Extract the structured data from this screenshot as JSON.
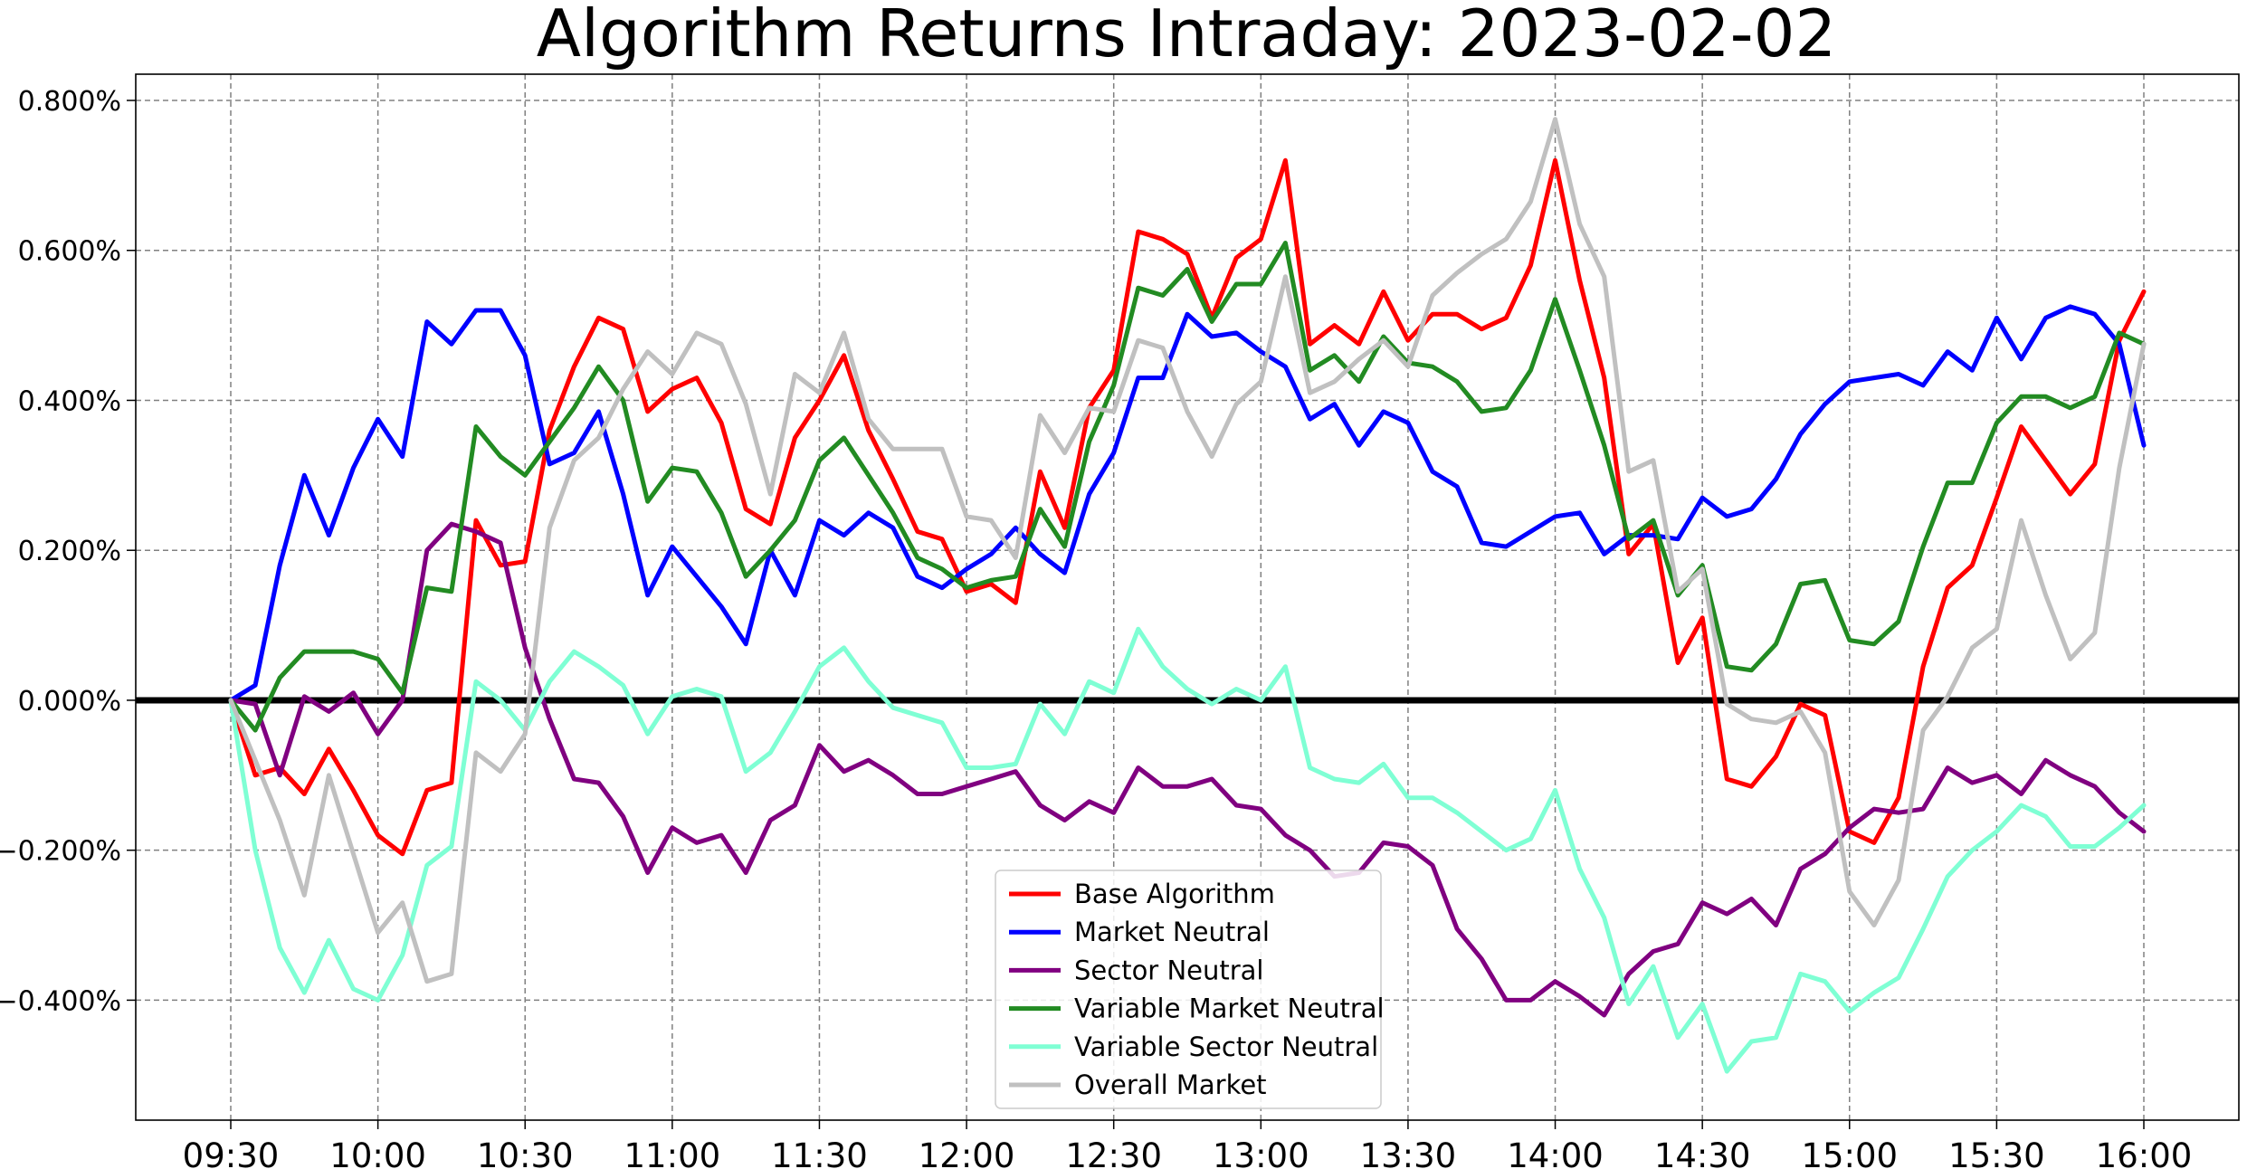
{
  "chart_data": {
    "type": "line",
    "title": "Algorithm Returns Intraday: 2023-02-02",
    "xlabel": "",
    "ylabel": "",
    "x_start": "09:30",
    "x_end": "16:00",
    "x_step_minutes": 5,
    "x_ticks": [
      "09:30",
      "10:00",
      "10:30",
      "11:00",
      "11:30",
      "12:00",
      "12:30",
      "13:00",
      "13:30",
      "14:00",
      "14:30",
      "15:00",
      "15:30",
      "16:00"
    ],
    "y_ticks": [
      "-0.400%",
      "-0.200%",
      "0.000%",
      "0.200%",
      "0.400%",
      "0.600%",
      "0.800%"
    ],
    "y_tick_values": [
      -0.4,
      -0.2,
      0.0,
      0.2,
      0.4,
      0.6,
      0.8
    ],
    "ylim": [
      -0.56,
      0.835
    ],
    "y_unit": "%",
    "grid": true,
    "zero_line": true,
    "legend_position": "bottom-center",
    "series": [
      {
        "name": "Base Algorithm",
        "color": "#ff0000",
        "values": [
          0.0,
          -0.1,
          -0.09,
          -0.125,
          -0.065,
          -0.12,
          -0.18,
          -0.205,
          -0.12,
          -0.11,
          0.24,
          0.18,
          0.185,
          0.36,
          0.445,
          0.51,
          0.495,
          0.385,
          0.415,
          0.43,
          0.37,
          0.255,
          0.235,
          0.35,
          0.4,
          0.46,
          0.36,
          0.295,
          0.225,
          0.215,
          0.145,
          0.155,
          0.13,
          0.305,
          0.23,
          0.39,
          0.44,
          0.625,
          0.615,
          0.595,
          0.51,
          0.59,
          0.615,
          0.72,
          0.475,
          0.5,
          0.475,
          0.545,
          0.48,
          0.515,
          0.515,
          0.495,
          0.51,
          0.58,
          0.72,
          0.56,
          0.43,
          0.195,
          0.235,
          0.05,
          0.11,
          -0.105,
          -0.115,
          -0.075,
          -0.005,
          -0.02,
          -0.175,
          -0.19,
          -0.13,
          0.045,
          0.15,
          0.18,
          0.27,
          0.365,
          0.32,
          0.275,
          0.315,
          0.48,
          0.545
        ]
      },
      {
        "name": "Market Neutral",
        "color": "#0000ff",
        "values": [
          0.0,
          0.02,
          0.18,
          0.3,
          0.22,
          0.31,
          0.375,
          0.325,
          0.505,
          0.475,
          0.52,
          0.52,
          0.46,
          0.315,
          0.33,
          0.385,
          0.275,
          0.14,
          0.205,
          0.165,
          0.125,
          0.075,
          0.2,
          0.14,
          0.24,
          0.22,
          0.25,
          0.23,
          0.165,
          0.15,
          0.175,
          0.195,
          0.23,
          0.195,
          0.17,
          0.275,
          0.33,
          0.43,
          0.43,
          0.515,
          0.485,
          0.49,
          0.465,
          0.445,
          0.375,
          0.395,
          0.34,
          0.385,
          0.37,
          0.305,
          0.285,
          0.21,
          0.205,
          0.225,
          0.245,
          0.25,
          0.195,
          0.22,
          0.22,
          0.215,
          0.27,
          0.245,
          0.255,
          0.295,
          0.355,
          0.395,
          0.425,
          0.43,
          0.435,
          0.42,
          0.465,
          0.44,
          0.51,
          0.455,
          0.51,
          0.525,
          0.515,
          0.475,
          0.34
        ]
      },
      {
        "name": "Sector Neutral",
        "color": "#800080",
        "values": [
          0.0,
          -0.005,
          -0.1,
          0.005,
          -0.015,
          0.01,
          -0.045,
          0.0,
          0.2,
          0.235,
          0.225,
          0.21,
          0.07,
          -0.025,
          -0.105,
          -0.11,
          -0.155,
          -0.23,
          -0.17,
          -0.19,
          -0.18,
          -0.23,
          -0.16,
          -0.14,
          -0.06,
          -0.095,
          -0.08,
          -0.1,
          -0.125,
          -0.125,
          -0.115,
          -0.105,
          -0.095,
          -0.14,
          -0.16,
          -0.135,
          -0.15,
          -0.09,
          -0.115,
          -0.115,
          -0.105,
          -0.14,
          -0.145,
          -0.18,
          -0.2,
          -0.235,
          -0.23,
          -0.19,
          -0.195,
          -0.22,
          -0.305,
          -0.345,
          -0.4,
          -0.4,
          -0.375,
          -0.395,
          -0.42,
          -0.365,
          -0.335,
          -0.325,
          -0.27,
          -0.285,
          -0.265,
          -0.3,
          -0.225,
          -0.205,
          -0.17,
          -0.145,
          -0.15,
          -0.145,
          -0.09,
          -0.11,
          -0.1,
          -0.125,
          -0.08,
          -0.1,
          -0.115,
          -0.15,
          -0.175
        ]
      },
      {
        "name": "Variable Market Neutral",
        "color": "#228b22",
        "values": [
          0.0,
          -0.04,
          0.03,
          0.065,
          0.065,
          0.065,
          0.055,
          0.01,
          0.15,
          0.145,
          0.365,
          0.325,
          0.3,
          0.345,
          0.39,
          0.445,
          0.4,
          0.265,
          0.31,
          0.305,
          0.25,
          0.165,
          0.2,
          0.24,
          0.32,
          0.35,
          0.3,
          0.25,
          0.19,
          0.175,
          0.15,
          0.16,
          0.165,
          0.255,
          0.205,
          0.345,
          0.42,
          0.55,
          0.54,
          0.575,
          0.505,
          0.555,
          0.555,
          0.61,
          0.44,
          0.46,
          0.425,
          0.485,
          0.45,
          0.445,
          0.425,
          0.385,
          0.39,
          0.44,
          0.535,
          0.44,
          0.34,
          0.215,
          0.24,
          0.14,
          0.18,
          0.045,
          0.04,
          0.075,
          0.155,
          0.16,
          0.08,
          0.075,
          0.105,
          0.205,
          0.29,
          0.29,
          0.37,
          0.405,
          0.405,
          0.39,
          0.405,
          0.49,
          0.475
        ]
      },
      {
        "name": "Variable Sector Neutral",
        "color": "#7fffd4",
        "values": [
          0.0,
          -0.2,
          -0.33,
          -0.39,
          -0.32,
          -0.385,
          -0.4,
          -0.34,
          -0.22,
          -0.195,
          0.025,
          0.0,
          -0.04,
          0.025,
          0.065,
          0.045,
          0.02,
          -0.045,
          0.005,
          0.015,
          0.005,
          -0.095,
          -0.07,
          -0.015,
          0.045,
          0.07,
          0.025,
          -0.01,
          -0.02,
          -0.03,
          -0.09,
          -0.09,
          -0.085,
          -0.005,
          -0.045,
          0.025,
          0.01,
          0.095,
          0.045,
          0.015,
          -0.005,
          0.015,
          0.0,
          0.045,
          -0.09,
          -0.105,
          -0.11,
          -0.085,
          -0.13,
          -0.13,
          -0.15,
          -0.175,
          -0.2,
          -0.185,
          -0.12,
          -0.225,
          -0.29,
          -0.405,
          -0.355,
          -0.45,
          -0.405,
          -0.495,
          -0.455,
          -0.45,
          -0.365,
          -0.375,
          -0.415,
          -0.39,
          -0.37,
          -0.305,
          -0.235,
          -0.2,
          -0.175,
          -0.14,
          -0.155,
          -0.195,
          -0.195,
          -0.17,
          -0.14
        ]
      },
      {
        "name": "Overall Market",
        "color": "#c0c0c0",
        "values": [
          0.0,
          -0.08,
          -0.16,
          -0.26,
          -0.1,
          -0.205,
          -0.31,
          -0.27,
          -0.375,
          -0.365,
          -0.07,
          -0.095,
          -0.045,
          0.23,
          0.32,
          0.35,
          0.415,
          0.465,
          0.435,
          0.49,
          0.475,
          0.395,
          0.275,
          0.435,
          0.41,
          0.49,
          0.375,
          0.335,
          0.335,
          0.335,
          0.245,
          0.24,
          0.19,
          0.38,
          0.33,
          0.39,
          0.385,
          0.48,
          0.47,
          0.385,
          0.325,
          0.395,
          0.425,
          0.565,
          0.41,
          0.425,
          0.455,
          0.48,
          0.445,
          0.54,
          0.57,
          0.595,
          0.615,
          0.665,
          0.775,
          0.635,
          0.565,
          0.305,
          0.32,
          0.145,
          0.175,
          -0.005,
          -0.025,
          -0.03,
          -0.015,
          -0.07,
          -0.255,
          -0.3,
          -0.24,
          -0.04,
          0.005,
          0.07,
          0.095,
          0.24,
          0.14,
          0.055,
          0.09,
          0.31,
          0.475
        ]
      }
    ]
  }
}
